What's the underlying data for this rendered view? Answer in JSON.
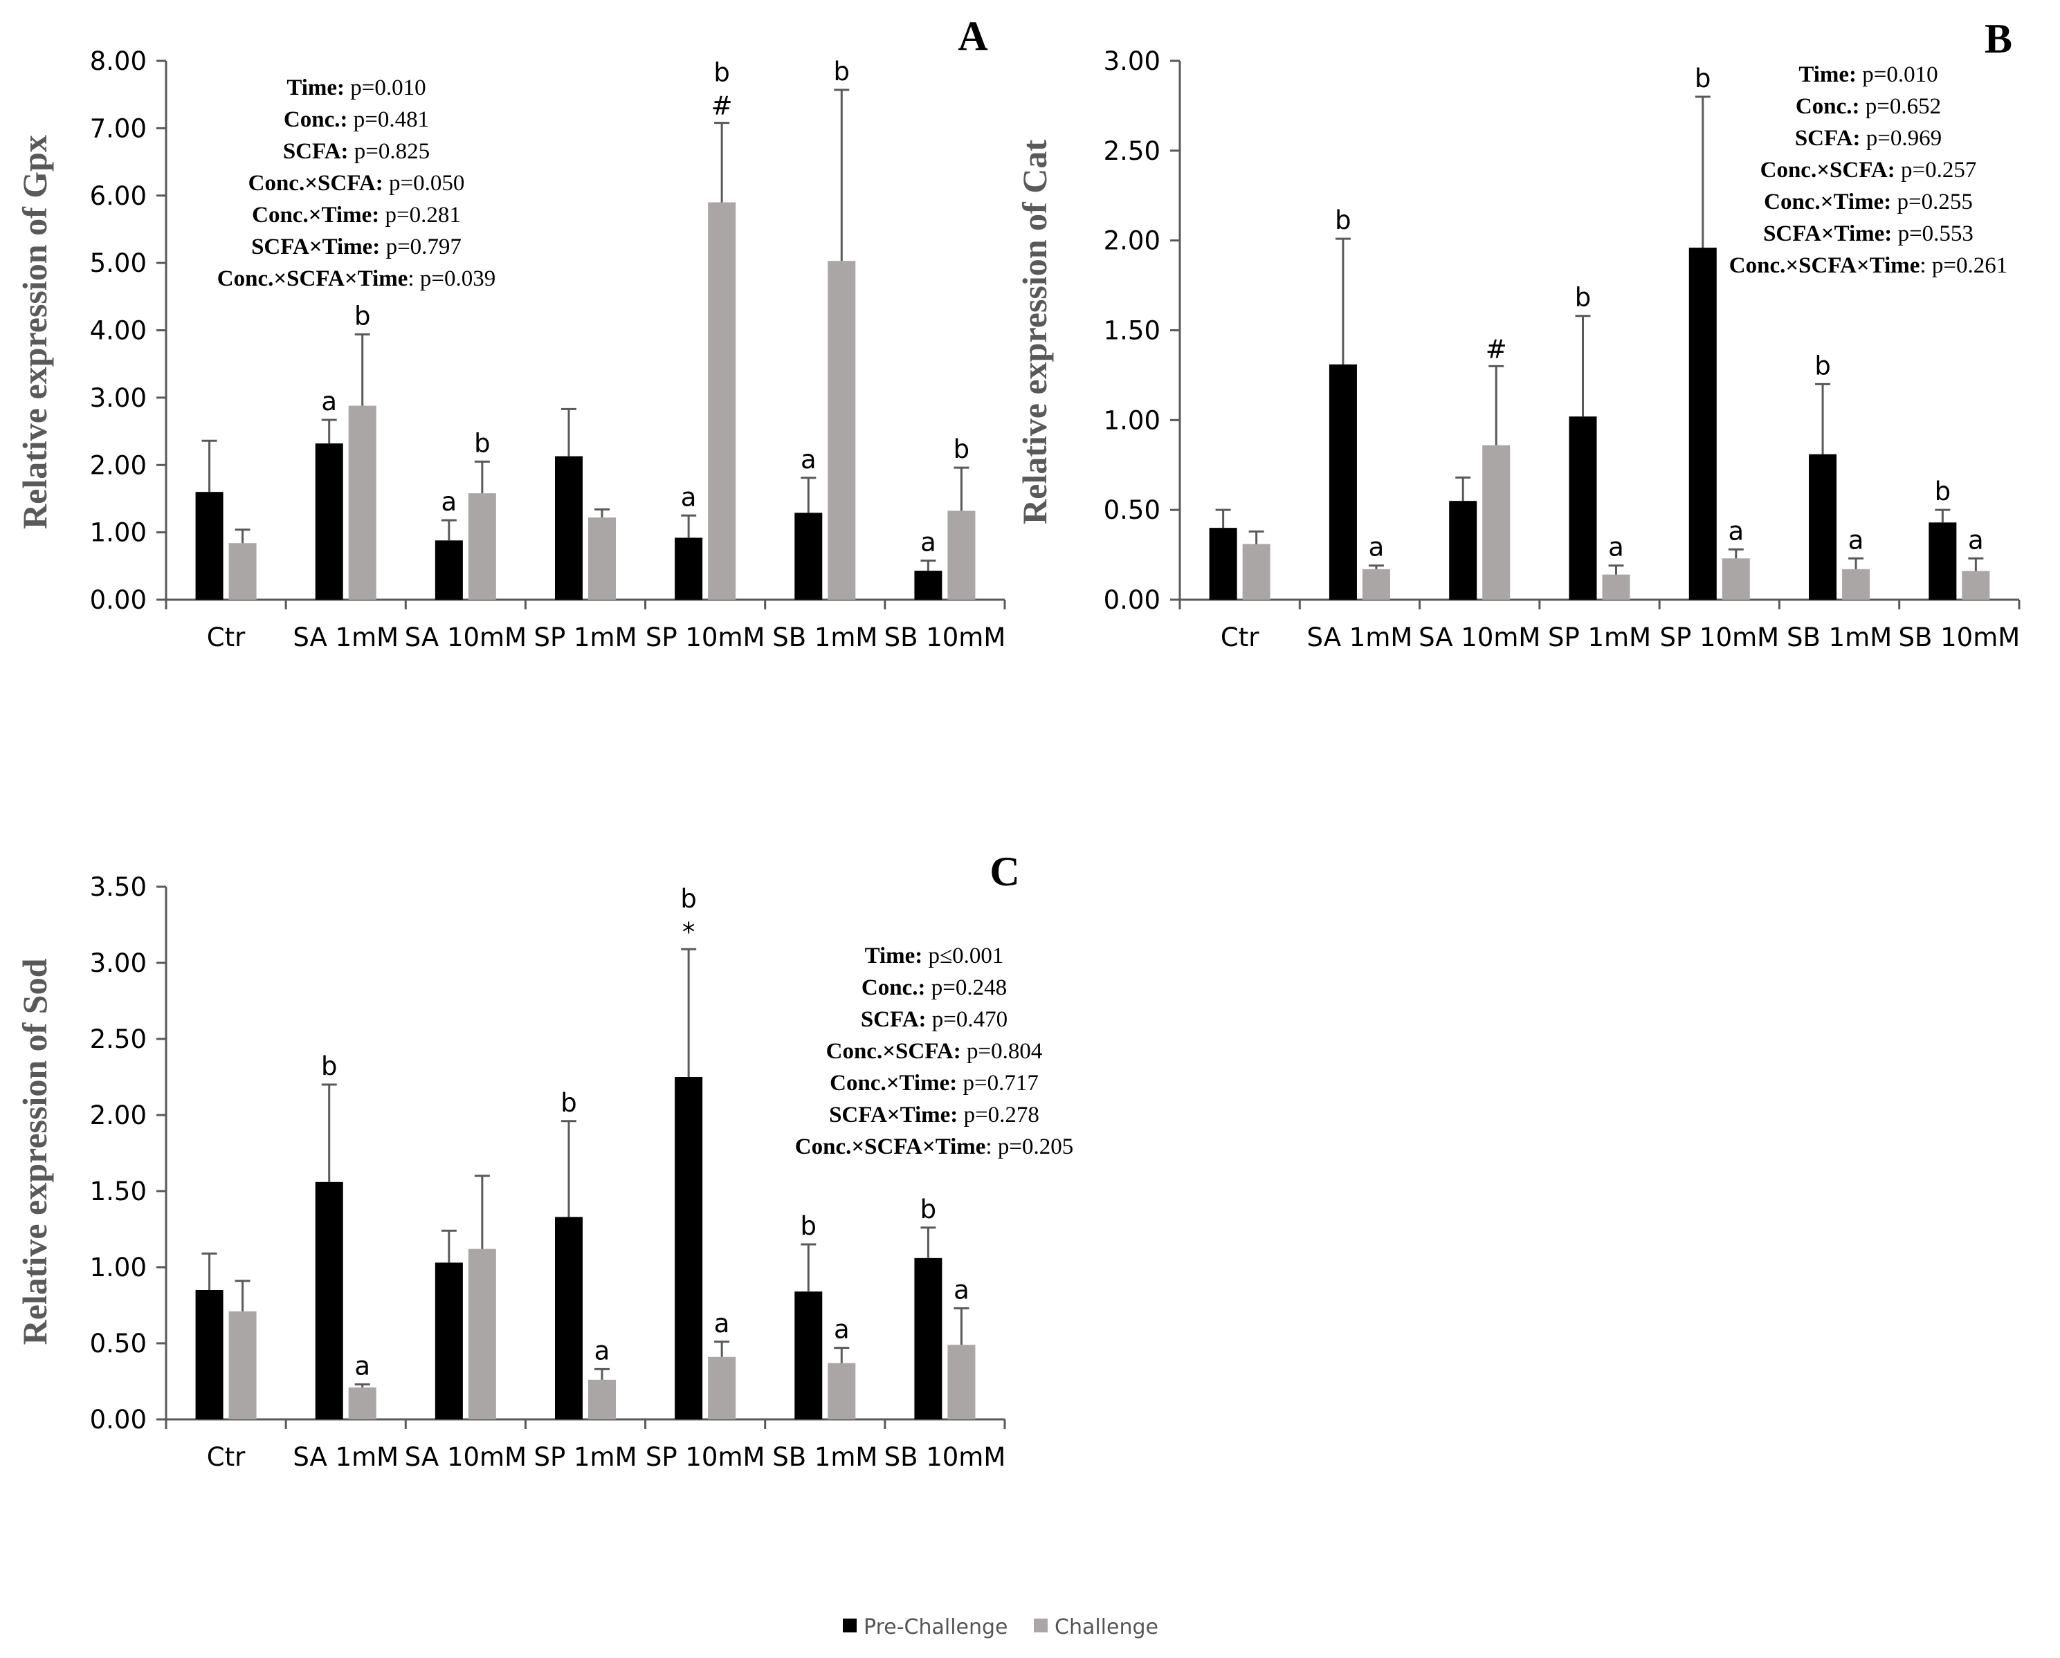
{
  "colors": {
    "pre": "#000000",
    "challenge": "#aaa6a6",
    "axis": "#595959",
    "errorbar": "#595959"
  },
  "legend": [
    {
      "label": "Pre-Challenge",
      "color": "#000000"
    },
    {
      "label": "Challenge",
      "color": "#aaa6a6"
    }
  ],
  "chart_data": [
    {
      "panel": "A",
      "type": "bar",
      "ylabel": "Relative expression of Gpx",
      "ylim": [
        0,
        8
      ],
      "yticks": [
        "0.00",
        "1.00",
        "2.00",
        "3.00",
        "4.00",
        "5.00",
        "6.00",
        "7.00",
        "8.00"
      ],
      "categories": [
        "Ctr",
        "SA 1mM",
        "SA 10mM",
        "SP 1mM",
        "SP 10mM",
        "SB 1mM",
        "SB 10mM"
      ],
      "series": [
        {
          "name": "Pre-Challenge",
          "values": [
            1.6,
            2.32,
            0.88,
            2.13,
            0.92,
            1.29,
            0.43
          ],
          "errors": [
            0.76,
            0.35,
            0.3,
            0.7,
            0.33,
            0.52,
            0.15
          ],
          "labels": [
            [],
            [
              "a"
            ],
            [
              "a"
            ],
            [],
            [
              "a"
            ],
            [
              "a"
            ],
            [
              "a"
            ]
          ]
        },
        {
          "name": "Challenge",
          "values": [
            0.84,
            2.88,
            1.58,
            1.22,
            5.9,
            5.03,
            1.32
          ],
          "errors": [
            0.2,
            1.06,
            0.47,
            0.12,
            1.18,
            2.54,
            0.64
          ],
          "labels": [
            [],
            [
              "b"
            ],
            [
              "b"
            ],
            [],
            [
              "b",
              "#"
            ],
            [
              "b"
            ],
            [
              "b"
            ]
          ]
        }
      ],
      "stats": [
        {
          "label": "Time:",
          "value": " p=0.010"
        },
        {
          "label": "Conc.:",
          "value": " p=0.481"
        },
        {
          "label": "SCFA:",
          "value": " p=0.825"
        },
        {
          "label": "Conc.×SCFA:",
          "value": " p=0.050"
        },
        {
          "label": "Conc.×Time:",
          "value": " p=0.281"
        },
        {
          "label": "SCFA×Time:",
          "value": " p=0.797"
        },
        {
          "label": "Conc.×SCFA×Time",
          "value": ": p=0.039"
        }
      ]
    },
    {
      "panel": "B",
      "type": "bar",
      "ylabel": "Relative expression of Cat",
      "ylim": [
        0,
        3
      ],
      "yticks": [
        "0.00",
        "0.50",
        "1.00",
        "1.50",
        "2.00",
        "2.50",
        "3.00"
      ],
      "categories": [
        "Ctr",
        "SA 1mM",
        "SA 10mM",
        "SP 1mM",
        "SP 10mM",
        "SB 1mM",
        "SB 10mM"
      ],
      "series": [
        {
          "name": "Pre-Challenge",
          "values": [
            0.4,
            1.31,
            0.55,
            1.02,
            1.96,
            0.81,
            0.43
          ],
          "errors": [
            0.1,
            0.7,
            0.13,
            0.56,
            0.84,
            0.39,
            0.07
          ],
          "labels": [
            [],
            [
              "b"
            ],
            [],
            [
              "b"
            ],
            [
              "b"
            ],
            [
              "b"
            ],
            [
              "b"
            ]
          ]
        },
        {
          "name": "Challenge",
          "values": [
            0.31,
            0.17,
            0.86,
            0.14,
            0.23,
            0.17,
            0.16
          ],
          "errors": [
            0.07,
            0.02,
            0.44,
            0.05,
            0.05,
            0.06,
            0.07
          ],
          "labels": [
            [],
            [
              "a"
            ],
            [
              "#"
            ],
            [
              "a"
            ],
            [
              "a"
            ],
            [
              "a"
            ],
            [
              "a"
            ]
          ]
        }
      ],
      "stats": [
        {
          "label": "Time:",
          "value": " p=0.010"
        },
        {
          "label": "Conc.:",
          "value": " p=0.652"
        },
        {
          "label": "SCFA:",
          "value": " p=0.969"
        },
        {
          "label": "Conc.×SCFA:",
          "value": " p=0.257"
        },
        {
          "label": "Conc.×Time:",
          "value": " p=0.255"
        },
        {
          "label": "SCFA×Time:",
          "value": " p=0.553"
        },
        {
          "label": "Conc.×SCFA×Time",
          "value": ": p=0.261"
        }
      ]
    },
    {
      "panel": "C",
      "type": "bar",
      "ylabel": "Relative expression of Sod",
      "ylim": [
        0,
        3.5
      ],
      "yticks": [
        "0.00",
        "0.50",
        "1.00",
        "1.50",
        "2.00",
        "2.50",
        "3.00",
        "3.50"
      ],
      "categories": [
        "Ctr",
        "SA 1mM",
        "SA 10mM",
        "SP 1mM",
        "SP 10mM",
        "SB 1mM",
        "SB 10mM"
      ],
      "series": [
        {
          "name": "Pre-Challenge",
          "values": [
            0.85,
            1.56,
            1.03,
            1.33,
            2.25,
            0.84,
            1.06
          ],
          "errors": [
            0.24,
            0.64,
            0.21,
            0.63,
            0.84,
            0.31,
            0.2
          ],
          "labels": [
            [],
            [
              "b"
            ],
            [],
            [
              "b"
            ],
            [
              "b",
              "*"
            ],
            [
              "b"
            ],
            [
              "b"
            ]
          ]
        },
        {
          "name": "Challenge",
          "values": [
            0.71,
            0.21,
            1.12,
            0.26,
            0.41,
            0.37,
            0.49
          ],
          "errors": [
            0.2,
            0.02,
            0.48,
            0.07,
            0.1,
            0.1,
            0.24
          ],
          "labels": [
            [],
            [
              "a"
            ],
            [],
            [
              "a"
            ],
            [
              "a"
            ],
            [
              "a"
            ],
            [
              "a"
            ]
          ]
        }
      ],
      "stats": [
        {
          "label": "Time:",
          "value": " p≤0.001"
        },
        {
          "label": "Conc.:",
          "value": " p=0.248"
        },
        {
          "label": "SCFA:",
          "value": " p=0.470"
        },
        {
          "label": "Conc.×SCFA:",
          "value": " p=0.804"
        },
        {
          "label": "Conc.×Time:",
          "value": " p=0.717"
        },
        {
          "label": "SCFA×Time:",
          "value": " p=0.278"
        },
        {
          "label": "Conc.×SCFA×Time",
          "value": ": p=0.205"
        }
      ]
    }
  ]
}
